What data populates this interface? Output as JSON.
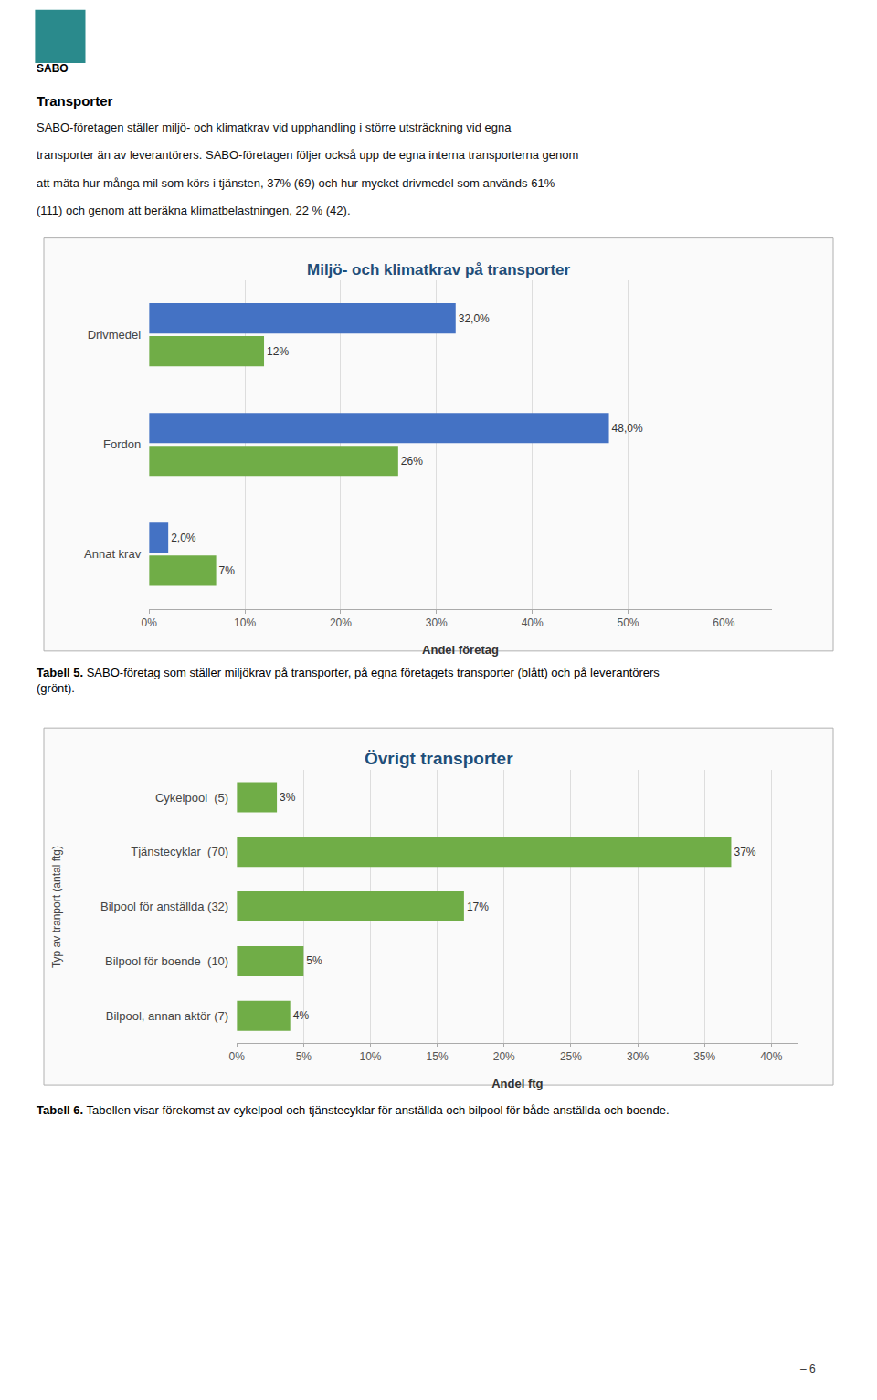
{
  "page": {
    "logo": {
      "text": "SABO",
      "color": "#2a8a8c"
    },
    "header_title": "Transporter",
    "header_lines": [
      "SABO-företagen ställer miljö- och klimatkrav vid upphandling i större utsträckning vid egna",
      "transporter än av leverantörers. SABO-företagen följer också upp de egna interna transporterna genom",
      "att mäta hur många mil som körs i tjänsten, 37% (69) och hur mycket drivmedel som används 61%",
      "(111) och genom att beräkna klimatbelastningen, 22 % (42)."
    ],
    "page_number": "– 6"
  },
  "chart_data": [
    {
      "type": "bar",
      "orientation": "horizontal",
      "title": "Miljö- och klimatkrav på transporter",
      "categories": [
        "Drivmedel",
        "Fordon",
        "Annat krav"
      ],
      "series": [
        {
          "color": "#4472c4",
          "values": [
            0.32,
            0.48,
            0.02
          ],
          "value_labels": [
            "32,0%",
            "48,0%",
            "2,0%"
          ]
        },
        {
          "color": "#70ad47",
          "values": [
            0.12,
            0.26,
            0.07
          ],
          "value_labels": [
            "12%",
            "26%",
            "7%"
          ]
        }
      ],
      "xlabel": "Andel företag",
      "xlim": [
        0,
        0.65
      ],
      "xticks": [
        {
          "value": 0.0,
          "label": "0%"
        },
        {
          "value": 0.1,
          "label": "10%"
        },
        {
          "value": 0.2,
          "label": "20%"
        },
        {
          "value": 0.3,
          "label": "30%"
        },
        {
          "value": 0.4,
          "label": "40%"
        },
        {
          "value": 0.5,
          "label": "50%"
        },
        {
          "value": 0.6,
          "label": "60%"
        }
      ],
      "grid": true,
      "data_labels": true,
      "caption": [
        "Tabell 5.",
        "SABO-företag som ställer miljökrav på transporter, på egna företagets transporter (blått) och på leverantörers",
        "(grönt)."
      ]
    },
    {
      "type": "bar",
      "orientation": "horizontal",
      "title": "Övrigt transporter",
      "categories": [
        "Bilpool, annan aktör (7)",
        "Bilpool för boende  (10)",
        "Bilpool för anställda (32)",
        "Tjänstecyklar  (70)",
        "Cykelpool  (5)"
      ],
      "values": [
        0.04,
        0.05,
        0.17,
        0.37,
        0.03
      ],
      "value_labels": [
        "4%",
        "5%",
        "17%",
        "37%",
        "3%"
      ],
      "color": "#70ad47",
      "xlabel": "Andel ftg",
      "ylabel": "Typ av tranport (antal ftg)",
      "xlim": [
        0,
        0.42
      ],
      "xticks": [
        {
          "value": 0.0,
          "label": "0%"
        },
        {
          "value": 0.05,
          "label": "5%"
        },
        {
          "value": 0.1,
          "label": "10%"
        },
        {
          "value": 0.15,
          "label": "15%"
        },
        {
          "value": 0.2,
          "label": "20%"
        },
        {
          "value": 0.25,
          "label": "25%"
        },
        {
          "value": 0.3,
          "label": "30%"
        },
        {
          "value": 0.35,
          "label": "35%"
        },
        {
          "value": 0.4,
          "label": "40%"
        }
      ],
      "grid": true,
      "data_labels": true,
      "caption": [
        "Tabell 6.",
        "Tabellen visar förekomst av cykelpool och tjänstecyklar för anställda och bilpool för både anställda och boende."
      ]
    }
  ]
}
